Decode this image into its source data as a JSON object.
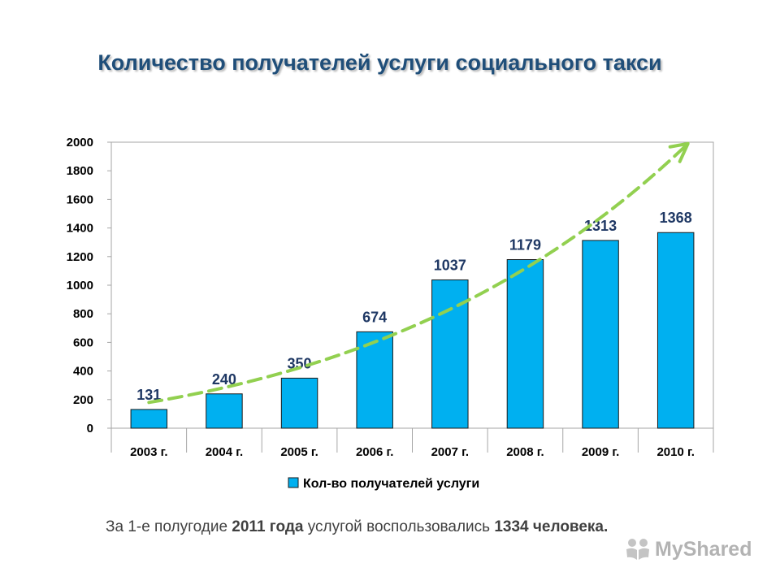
{
  "chart_data": {
    "type": "bar",
    "title": "Количество получателей услуги социального такси",
    "categories": [
      "2003 г.",
      "2004 г.",
      "2005 г.",
      "2006 г.",
      "2007 г.",
      "2008 г.",
      "2009 г.",
      "2010 г."
    ],
    "series": [
      {
        "name": "Кол-во получателей услуги",
        "values": [
          131,
          240,
          350,
          674,
          1037,
          1179,
          1313,
          1368
        ],
        "color": "#00b0f0"
      }
    ],
    "ylim": [
      0,
      2000
    ],
    "yticks": [
      0,
      200,
      400,
      600,
      800,
      1000,
      1200,
      1400,
      1600,
      1800,
      2000
    ],
    "grid": false,
    "legend": "bottom",
    "trend_arrow": {
      "style": "dashed",
      "color": "#92d050",
      "from_value": 180,
      "to_value": 1990
    },
    "label_color": "#1f3864"
  },
  "note": {
    "prefix": "За 1-е полугодие ",
    "year": "2011 года",
    "middle": " услугой воспользовались ",
    "count": "1334",
    "suffix": " человека."
  },
  "watermark": {
    "text": "MyShared",
    "icon": "slideshare-icon"
  }
}
